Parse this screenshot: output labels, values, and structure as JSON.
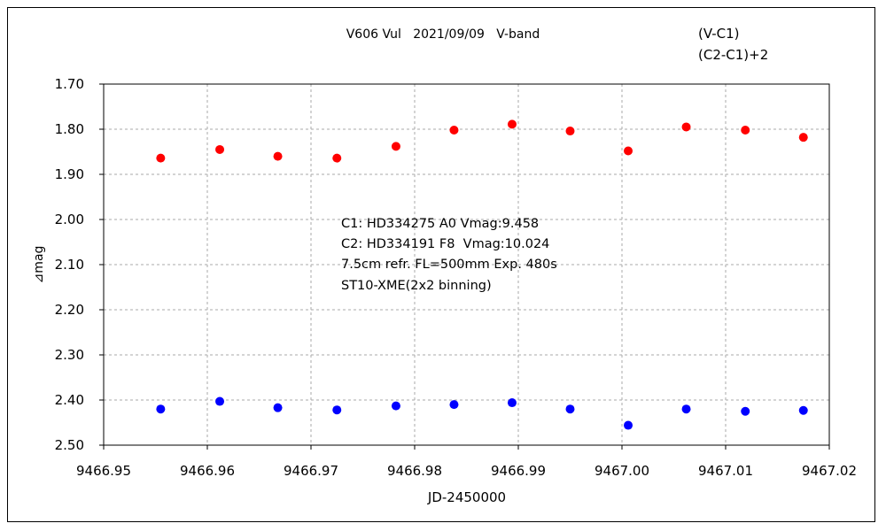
{
  "chart_data": {
    "type": "scatter",
    "title": "V606 Vul   2021/09/09   V-band",
    "xlabel": "JD-2450000",
    "ylabel": "⊿mag",
    "xlim": [
      9466.95,
      9467.02
    ],
    "ylim": [
      1.7,
      2.5
    ],
    "y_inverted": true,
    "grid": true,
    "legend_position": "top-right",
    "x_ticks": [
      "9466.95",
      "9466.96",
      "9466.97",
      "9466.98",
      "9466.99",
      "9467.00",
      "9467.01",
      "9467.02"
    ],
    "y_ticks": [
      "1.70",
      "1.80",
      "1.90",
      "2.00",
      "2.10",
      "2.20",
      "2.30",
      "2.40",
      "2.50"
    ],
    "x": [
      9466.9555,
      9466.9612,
      9466.9668,
      9466.9725,
      9466.9782,
      9466.9838,
      9466.9894,
      9466.995,
      9467.0006,
      9467.0062,
      9467.0119,
      9467.0175
    ],
    "series": [
      {
        "name": "(V-C1)",
        "color": "#ff0000",
        "values": [
          1.864,
          1.845,
          1.86,
          1.864,
          1.838,
          1.802,
          1.789,
          1.804,
          1.848,
          1.795,
          1.802,
          1.818
        ]
      },
      {
        "name": "(C2-C1)+2",
        "color": "#0000ff",
        "values": [
          2.42,
          2.403,
          2.417,
          2.422,
          2.413,
          2.41,
          2.406,
          2.42,
          2.456,
          2.42,
          2.425,
          2.423
        ]
      }
    ],
    "annotations": [
      "C1: HD334275 A0 Vmag:9.458",
      "C2: HD334191 F8  Vmag:10.024",
      "7.5cm refr. FL=500mm Exp. 480s",
      "ST10-XME(2x2 binning)"
    ]
  }
}
